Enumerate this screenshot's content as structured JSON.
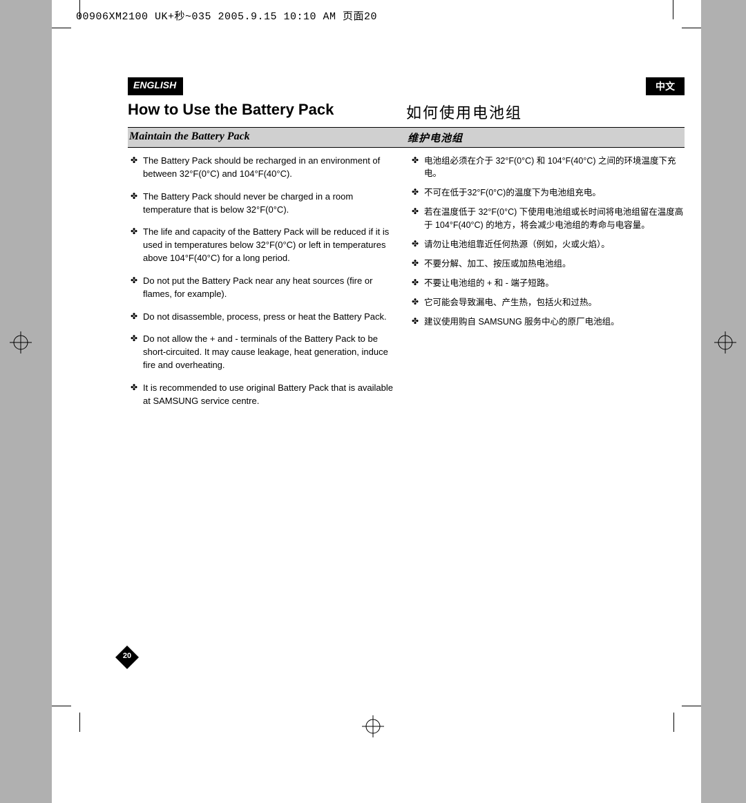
{
  "header_line": "00906XM2100 UK+秒~035 2005.9.15 10:10 AM 页面20",
  "lang_en": "ENGLISH",
  "lang_cn": "中文",
  "title_en": "How to Use the Battery Pack",
  "title_cn": "如何使用电池组",
  "subtitle_en": "Maintain the Battery Pack",
  "subtitle_cn": "维护电池组",
  "page_number": "20",
  "bullets_en": [
    "The Battery Pack should be recharged in an environment of between 32°F(0°C) and 104°F(40°C).",
    "The Battery Pack should never be charged in a room temperature that is below 32°F(0°C).",
    "The life and capacity of the Battery Pack will be reduced if it is used in temperatures below 32°F(0°C) or left in temperatures above 104°F(40°C) for a long period.",
    "Do not put the Battery Pack near any heat sources (fire or flames, for example).",
    "Do not disassemble, process, press or heat the Battery Pack.",
    "Do not allow the + and - terminals of the Battery Pack to be short-circuited. It may cause leakage, heat generation, induce fire and overheating.",
    "It is recommended to use original Battery Pack that is available at SAMSUNG service centre."
  ],
  "bullets_cn": [
    "电池组必须在介于 32°F(0°C) 和 104°F(40°C) 之间的环境温度下充电。",
    "不可在低于32°F(0°C)的温度下为电池组充电。",
    "若在温度低于 32°F(0°C) 下使用电池组或长时间将电池组留在温度高于 104°F(40°C) 的地方，将会减少电池组的寿命与电容量。",
    "请勿让电池组靠近任何热源（例如，火或火焰）。",
    "不要分解、加工、按压或加热电池组。",
    "不要让电池组的 + 和 - 端子短路。",
    "它可能会导致漏电、产生热，包括火和过热。",
    "建议使用购自 SAMSUNG 服务中心的原厂电池组。"
  ],
  "colors": {
    "page_bg": "#ffffff",
    "outer_bg": "#b0b0b0",
    "badge_bg": "#000000",
    "subtitle_bg": "#d0d0d0"
  }
}
